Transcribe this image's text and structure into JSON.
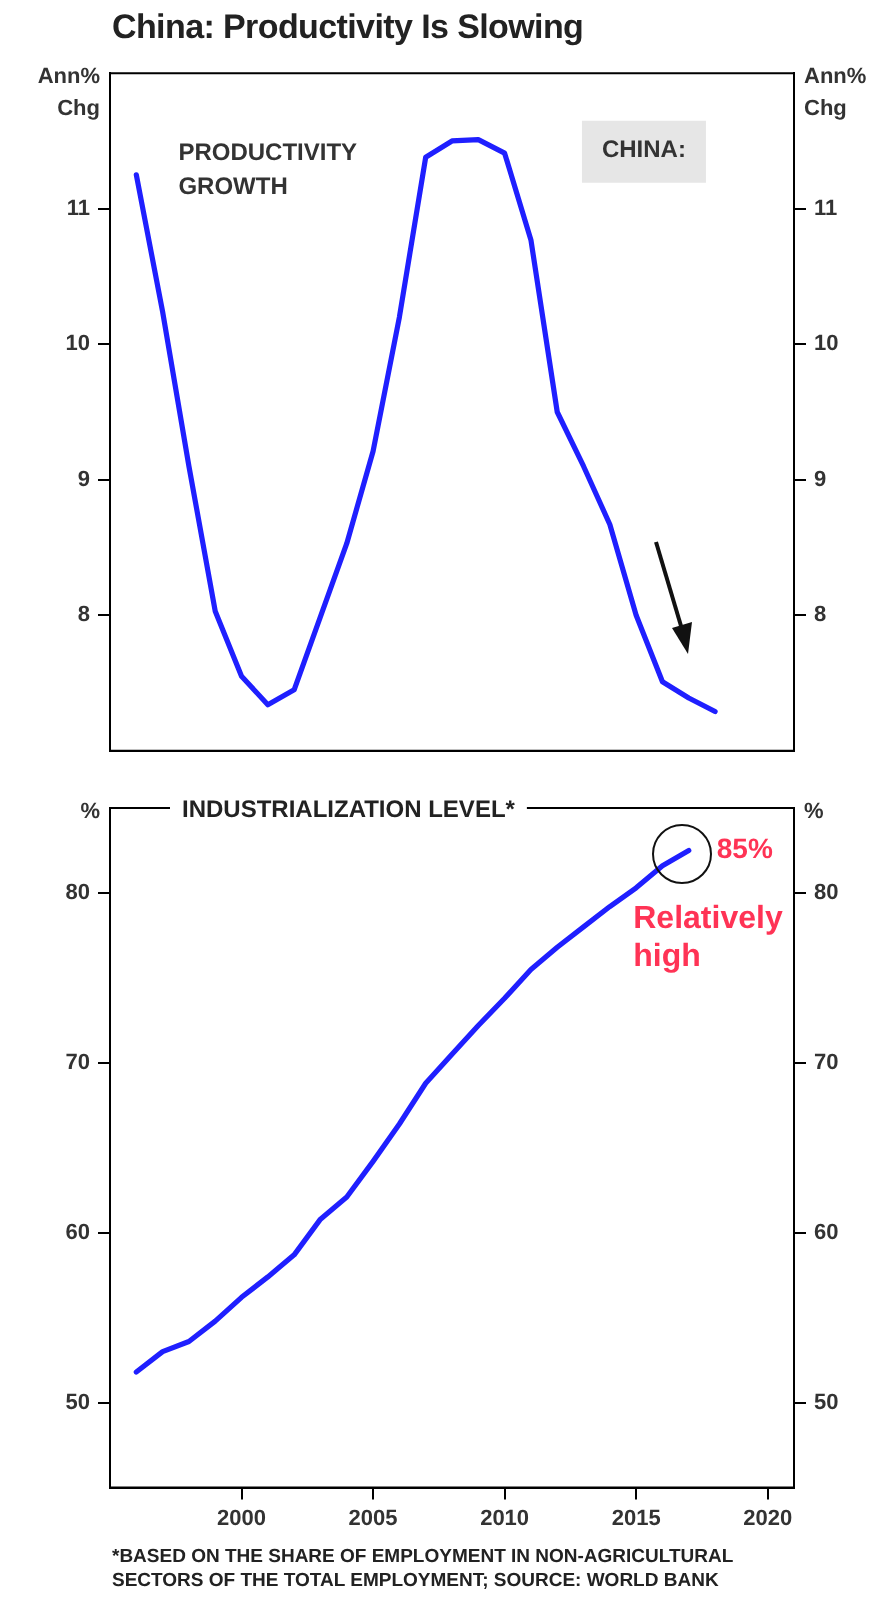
{
  "chart_data": [
    {
      "type": "line",
      "title": "China: Productivity Is Slowing",
      "ylabel": "Ann% Chg",
      "y2label": "Ann% Chg",
      "annotations": [
        "PRODUCTIVITY GROWTH",
        "CHINA:"
      ],
      "x": [
        1996,
        1997,
        1998,
        1999,
        2000,
        2001,
        2002,
        2003,
        2004,
        2005,
        2006,
        2007,
        2008,
        2009,
        2010,
        2011,
        2012,
        2013,
        2014,
        2015,
        2016,
        2017,
        2018
      ],
      "values": [
        11.25,
        10.24,
        9.1,
        8.03,
        7.55,
        7.34,
        7.45,
        7.99,
        8.53,
        9.21,
        10.2,
        11.38,
        11.5,
        11.51,
        11.41,
        10.77,
        9.5,
        9.1,
        8.67,
        8.0,
        7.51,
        7.39,
        7.29
      ],
      "color": "#1f1fff",
      "xlim": [
        1995,
        2021
      ],
      "ylim": [
        7,
        12
      ],
      "yticks": [
        8,
        9,
        10,
        11
      ],
      "y2lim": [
        7,
        12
      ],
      "y2ticks": [
        8,
        9,
        10,
        11
      ],
      "tick_labels": "y"
    },
    {
      "type": "line",
      "title": "INDUSTRIALIZATION LEVEL*",
      "ylabel": "%",
      "y2label": "%",
      "annotations": [
        {
          "text": "85%",
          "x": 2017,
          "y": 82.5
        },
        "Relatively high",
        "*BASED ON THE SHARE OF EMPLOYMENT IN NON-AGRICULTURAL SECTORS OF THE TOTAL EMPLOYMENT; SOURCE: WORLD BANK"
      ],
      "x": [
        1996,
        1997,
        1998,
        1999,
        2000,
        2001,
        2002,
        2003,
        2004,
        2005,
        2006,
        2007,
        2008,
        2009,
        2010,
        2011,
        2012,
        2013,
        2014,
        2015,
        2016,
        2017
      ],
      "values": [
        51.8,
        53.0,
        53.6,
        54.8,
        56.2,
        57.4,
        58.7,
        60.8,
        62.1,
        64.2,
        66.4,
        68.8,
        70.5,
        72.2,
        73.8,
        75.5,
        76.8,
        78.0,
        79.2,
        80.3,
        81.6,
        82.5
      ],
      "color": "#1f1fff",
      "xlim": [
        1995,
        2021
      ],
      "xticks": [
        2000,
        2005,
        2010,
        2015,
        2020
      ],
      "ylim": [
        45,
        85
      ],
      "yticks": [
        50,
        60,
        70,
        80
      ],
      "y2lim": [
        45,
        85
      ],
      "y2ticks": [
        50,
        60,
        70,
        80
      ]
    }
  ]
}
